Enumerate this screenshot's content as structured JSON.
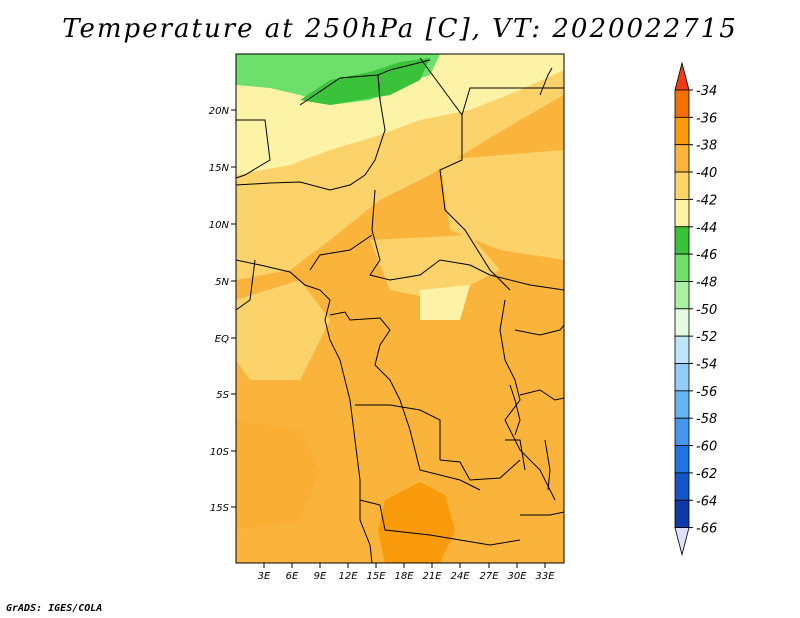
{
  "title": "Temperature at 250hPa [C], VT: 2020022715",
  "credit": "GrADS: IGES/COLA",
  "map": {
    "lat_labels": [
      "20N",
      "15N",
      "10N",
      "5N",
      "EQ",
      "5S",
      "10S",
      "15S"
    ],
    "lon_labels": [
      "3E",
      "6E",
      "9E",
      "12E",
      "15E",
      "18E",
      "21E",
      "24E",
      "27E",
      "30E",
      "33E"
    ]
  },
  "colorbar": {
    "labels": [
      "-34",
      "-36",
      "-38",
      "-40",
      "-42",
      "-44",
      "-46",
      "-48",
      "-50",
      "-52",
      "-54",
      "-56",
      "-58",
      "-60",
      "-62",
      "-64",
      "-66"
    ],
    "colors": {
      "top_triangle": "#f03c14",
      "bins": [
        "#f56e00",
        "#fa9b0a",
        "#fbb53c",
        "#fcd46a",
        "#fdf3a6",
        "#39c23a",
        "#6ddf6b",
        "#a7f1a0",
        "#e4fbe0",
        "#bde6f9",
        "#93ccf6",
        "#6ab3f3",
        "#4496ee",
        "#1f74e3",
        "#1655c7",
        "#0d3aa7"
      ],
      "bottom_triangle": "#050a74",
      "bottom_tip": "#dfe1fa"
    }
  },
  "field_colors": {
    "warm": "#fab43c",
    "warmer": "#f99a0a",
    "mid": "#fcd36a",
    "cool": "#fdf3a6",
    "green": "#39c23a",
    "lightgreen": "#6ddf6b"
  }
}
